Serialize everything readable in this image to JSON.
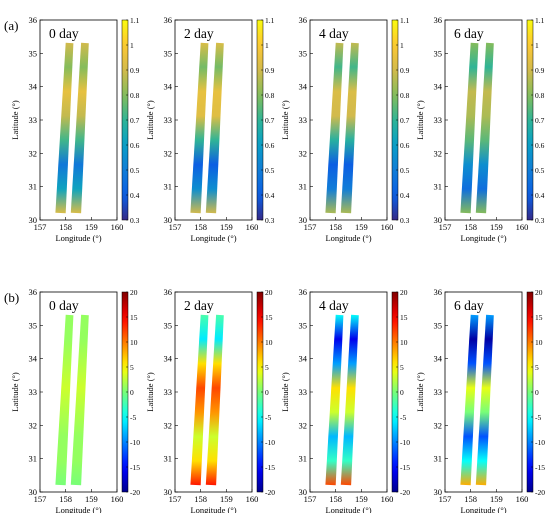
{
  "figure": {
    "rows": [
      {
        "label": "(a)",
        "colorbar": {
          "colormap": "parula",
          "range": [
            0.3,
            1.1
          ],
          "ticks": [
            "0.3",
            "0.4",
            "0.5",
            "0.6",
            "0.7",
            "0.8",
            "0.9",
            "1",
            "1.1"
          ]
        },
        "panels": [
          {
            "title": "0 day",
            "field": [
              0.92,
              0.62,
              0.48,
              0.72,
              0.88,
              0.95,
              0.8,
              0.9
            ]
          },
          {
            "title": "2 day",
            "field": [
              0.9,
              0.55,
              0.4,
              0.7,
              0.93,
              0.95,
              0.78,
              0.92
            ]
          },
          {
            "title": "4 day",
            "field": [
              0.85,
              0.5,
              0.4,
              0.68,
              0.9,
              0.92,
              0.72,
              0.88
            ]
          },
          {
            "title": "6 day",
            "field": [
              0.8,
              0.45,
              0.55,
              0.75,
              0.85,
              0.88,
              0.7,
              0.8
            ]
          }
        ]
      },
      {
        "label": "(b)",
        "colorbar": {
          "colormap": "jet",
          "range": [
            -20,
            20
          ],
          "ticks": [
            "-20",
            "-15",
            "-10",
            "-5",
            "0",
            "5",
            "10",
            "15",
            "20"
          ]
        },
        "panels": [
          {
            "title": "0 day",
            "field": [
              0,
              1,
              1,
              2,
              3,
              2,
              1,
              1
            ]
          },
          {
            "title": "2 day",
            "field": [
              14,
              6,
              3,
              9,
              12,
              6,
              -6,
              -2
            ]
          },
          {
            "title": "4 day",
            "field": [
              12,
              -3,
              -8,
              3,
              6,
              -9,
              -16,
              -5
            ]
          },
          {
            "title": "6 day",
            "field": [
              8,
              -5,
              -12,
              0,
              4,
              -12,
              -19,
              -9
            ]
          }
        ]
      }
    ],
    "axes": {
      "xlabel": "Longitude (°)",
      "ylabel": "Latitude (°)",
      "xlim": [
        157,
        160
      ],
      "ylim": [
        30,
        36
      ],
      "xticks": [
        "157",
        "158",
        "159",
        "160"
      ],
      "yticks": [
        "30",
        "31",
        "32",
        "33",
        "34",
        "35",
        "36"
      ]
    }
  },
  "chart_data": [
    {
      "type": "heatmap",
      "title": "0 day",
      "xlabel": "Longitude (°)",
      "ylabel": "Latitude (°)",
      "xlim": [
        157,
        160
      ],
      "ylim": [
        30,
        36
      ],
      "color_range": [
        0.3,
        1.1
      ]
    },
    {
      "type": "heatmap",
      "title": "2 day",
      "xlabel": "Longitude (°)",
      "ylabel": "Latitude (°)",
      "xlim": [
        157,
        160
      ],
      "ylim": [
        30,
        36
      ],
      "color_range": [
        0.3,
        1.1
      ]
    },
    {
      "type": "heatmap",
      "title": "4 day",
      "xlabel": "Longitude (°)",
      "ylabel": "Latitude (°)",
      "xlim": [
        157,
        160
      ],
      "ylim": [
        30,
        36
      ],
      "color_range": [
        0.3,
        1.1
      ]
    },
    {
      "type": "heatmap",
      "title": "6 day",
      "xlabel": "Longitude (°)",
      "ylabel": "Latitude (°)",
      "xlim": [
        157,
        160
      ],
      "ylim": [
        30,
        36
      ],
      "color_range": [
        0.3,
        1.1
      ]
    },
    {
      "type": "heatmap",
      "title": "0 day",
      "xlabel": "Longitude (°)",
      "ylabel": "Latitude (°)",
      "xlim": [
        157,
        160
      ],
      "ylim": [
        30,
        36
      ],
      "color_range": [
        -20,
        20
      ]
    },
    {
      "type": "heatmap",
      "title": "2 day",
      "xlabel": "Longitude (°)",
      "ylabel": "Latitude (°)",
      "xlim": [
        157,
        160
      ],
      "ylim": [
        30,
        36
      ],
      "color_range": [
        -20,
        20
      ]
    },
    {
      "type": "heatmap",
      "title": "4 day",
      "xlabel": "Longitude (°)",
      "ylabel": "Latitude (°)",
      "xlim": [
        157,
        160
      ],
      "ylim": [
        30,
        36
      ],
      "color_range": [
        -20,
        20
      ]
    },
    {
      "type": "heatmap",
      "title": "6 day",
      "xlabel": "Longitude (°)",
      "ylabel": "Latitude (°)",
      "xlim": [
        157,
        160
      ],
      "ylim": [
        30,
        36
      ],
      "color_range": [
        -20,
        20
      ]
    }
  ]
}
